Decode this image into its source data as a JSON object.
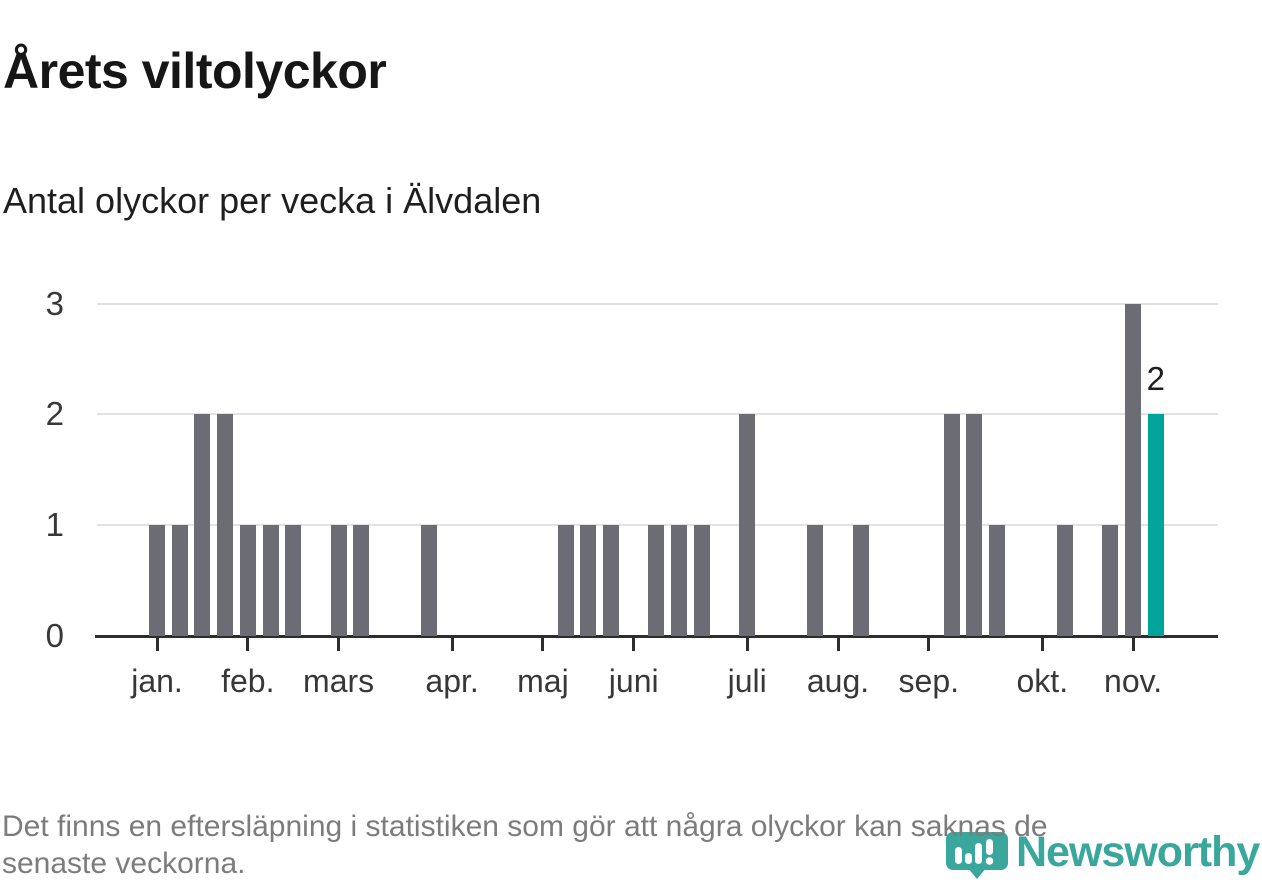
{
  "header": {
    "title": "Årets viltolyckor",
    "subtitle": "Antal olyckor per vecka i Älvdalen"
  },
  "footer": {
    "line1": "Det finns en eftersläpning i statistiken som gör att några olyckor kan saknas de",
    "line2": "senaste veckorna."
  },
  "branding": {
    "logo_text": "Newsworthy",
    "logo_icon": "newsworthy-pin-barchart-exclamation"
  },
  "colors": {
    "bar": "#6c6c74",
    "accent": "#00a49a",
    "logo": "#3aa79c",
    "axis": "#2d2d2d",
    "grid": "#e2e2e2",
    "axis_text": "#383838",
    "footer_text": "#7c7c7c"
  },
  "chart_data": {
    "type": "bar",
    "title": "Årets viltolyckor",
    "subtitle": "Antal olyckor per vecka i Älvdalen",
    "xlabel": "",
    "ylabel": "",
    "x_unit": "vecka",
    "ylim": [
      0,
      3
    ],
    "y_ticks": [
      0,
      1,
      2,
      3
    ],
    "grid": "horizontal-only",
    "legend": "none",
    "values_by_week": [
      1,
      1,
      2,
      2,
      1,
      1,
      1,
      0,
      1,
      1,
      0,
      0,
      1,
      0,
      0,
      0,
      0,
      0,
      1,
      1,
      1,
      0,
      1,
      1,
      1,
      0,
      2,
      0,
      0,
      1,
      0,
      1,
      0,
      0,
      0,
      2,
      2,
      1,
      0,
      0,
      1,
      0,
      1,
      3,
      2
    ],
    "month_ticks": [
      {
        "label": "jan.",
        "week": 1
      },
      {
        "label": "feb.",
        "week": 5
      },
      {
        "label": "mars",
        "week": 9
      },
      {
        "label": "apr.",
        "week": 14
      },
      {
        "label": "maj",
        "week": 18
      },
      {
        "label": "juni",
        "week": 22
      },
      {
        "label": "juli",
        "week": 27
      },
      {
        "label": "aug.",
        "week": 31
      },
      {
        "label": "sep.",
        "week": 35
      },
      {
        "label": "okt.",
        "week": 40
      },
      {
        "label": "nov.",
        "week": 44
      }
    ],
    "highlight_last_bar": true,
    "highlight_value_label": "2"
  }
}
